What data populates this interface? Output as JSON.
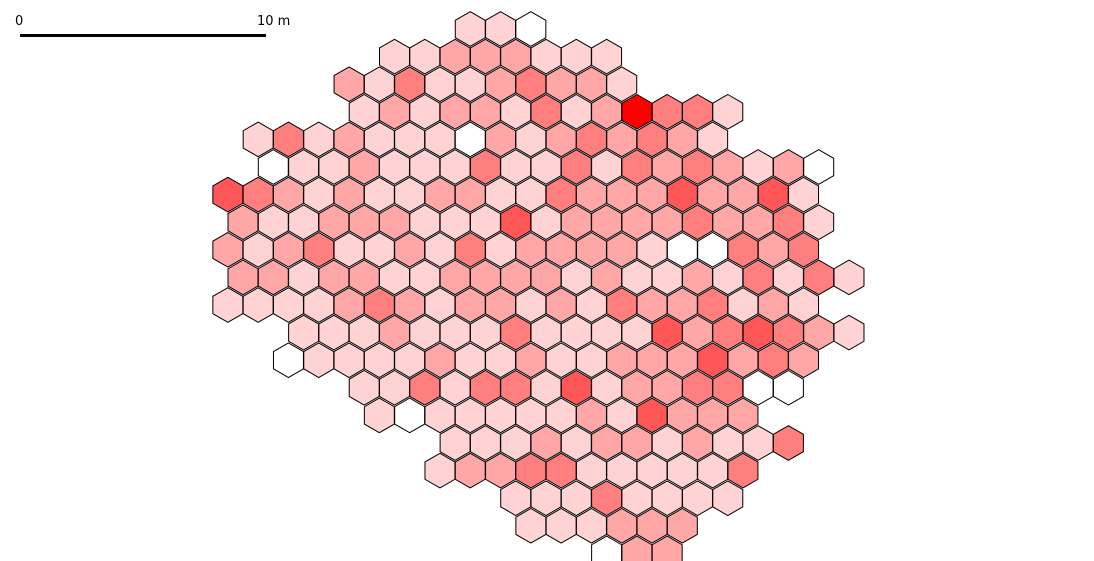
{
  "scale_bar": {
    "start_label": "0",
    "end_label": "10 m"
  },
  "colors": {
    "stroke": "#000000",
    "levels": [
      "#ffffff",
      "#ffd3d3",
      "#ffa6a6",
      "#ff7f7f",
      "#ff5757",
      "#ff0000"
    ]
  },
  "hex_rows": [
    {
      "row": 0,
      "start": 8,
      "levels": [
        1,
        1,
        0
      ]
    },
    {
      "row": 1,
      "start": 5,
      "levels": [
        1,
        1,
        2,
        2,
        2,
        1,
        1,
        1
      ]
    },
    {
      "row": 2,
      "start": 4,
      "levels": [
        2,
        1,
        3,
        1,
        1,
        2,
        3,
        2,
        2,
        1
      ]
    },
    {
      "row": 3,
      "start": 4,
      "levels": [
        1,
        2,
        1,
        2,
        2,
        1,
        3,
        1,
        2,
        5,
        3,
        3,
        1
      ]
    },
    {
      "row": 4,
      "start": 1,
      "levels": [
        1,
        3,
        1,
        2,
        1,
        1,
        1,
        0,
        2,
        1,
        2,
        3,
        2,
        3,
        2,
        1
      ]
    },
    {
      "row": 5,
      "start": 1,
      "levels": [
        0,
        1,
        1,
        2,
        1,
        1,
        1,
        3,
        1,
        1,
        3,
        1,
        3,
        2,
        3,
        2,
        1,
        2,
        0
      ]
    },
    {
      "row": 6,
      "start": 0,
      "levels": [
        4,
        3,
        2,
        1,
        2,
        1,
        1,
        2,
        2,
        1,
        1,
        3,
        2,
        2,
        2,
        4,
        2,
        2,
        4,
        1
      ]
    },
    {
      "row": 7,
      "start": 0,
      "levels": [
        2,
        1,
        1,
        2,
        2,
        2,
        1,
        1,
        1,
        4,
        1,
        2,
        2,
        2,
        2,
        3,
        2,
        2,
        3,
        1
      ]
    },
    {
      "row": 8,
      "start": 0,
      "levels": [
        2,
        1,
        2,
        3,
        1,
        1,
        2,
        1,
        3,
        1,
        2,
        2,
        2,
        2,
        1,
        0,
        0,
        3,
        2,
        3
      ]
    },
    {
      "row": 9,
      "start": 0,
      "levels": [
        2,
        2,
        1,
        2,
        2,
        1,
        1,
        2,
        2,
        2,
        2,
        1,
        2,
        1,
        1,
        2,
        1,
        3,
        1,
        3,
        1
      ]
    },
    {
      "row": 10,
      "start": 0,
      "levels": [
        1,
        1,
        1,
        1,
        2,
        3,
        2,
        1,
        2,
        2,
        1,
        2,
        1,
        3,
        2,
        2,
        3,
        1,
        2,
        1
      ]
    },
    {
      "row": 11,
      "start": 2,
      "levels": [
        1,
        1,
        1,
        2,
        1,
        1,
        1,
        3,
        1,
        1,
        1,
        1,
        4,
        2,
        3,
        4,
        3,
        2,
        1
      ]
    },
    {
      "row": 12,
      "start": 2,
      "levels": [
        0,
        1,
        1,
        1,
        1,
        2,
        1,
        1,
        2,
        1,
        1,
        2,
        2,
        2,
        4,
        2,
        3,
        2
      ]
    },
    {
      "row": 13,
      "start": 4,
      "levels": [
        1,
        1,
        3,
        1,
        3,
        3,
        1,
        4,
        1,
        2,
        2,
        3,
        3,
        0,
        0
      ]
    },
    {
      "row": 14,
      "start": 5,
      "levels": [
        1,
        0,
        1,
        1,
        1,
        1,
        1,
        2,
        1,
        4,
        2,
        2,
        2
      ]
    },
    {
      "row": 15,
      "start": 7,
      "levels": [
        1,
        1,
        1,
        2,
        1,
        2,
        2,
        1,
        2,
        1,
        1,
        3
      ]
    },
    {
      "row": 16,
      "start": 7,
      "levels": [
        1,
        2,
        2,
        3,
        3,
        1,
        1,
        1,
        1,
        1,
        3
      ]
    },
    {
      "row": 17,
      "start": 9,
      "levels": [
        1,
        1,
        1,
        3,
        1,
        1,
        1,
        1
      ]
    },
    {
      "row": 18,
      "start": 10,
      "levels": [
        1,
        1,
        1,
        2,
        2,
        2
      ]
    },
    {
      "row": 19,
      "start": 12,
      "levels": [
        0,
        2,
        2
      ]
    }
  ]
}
